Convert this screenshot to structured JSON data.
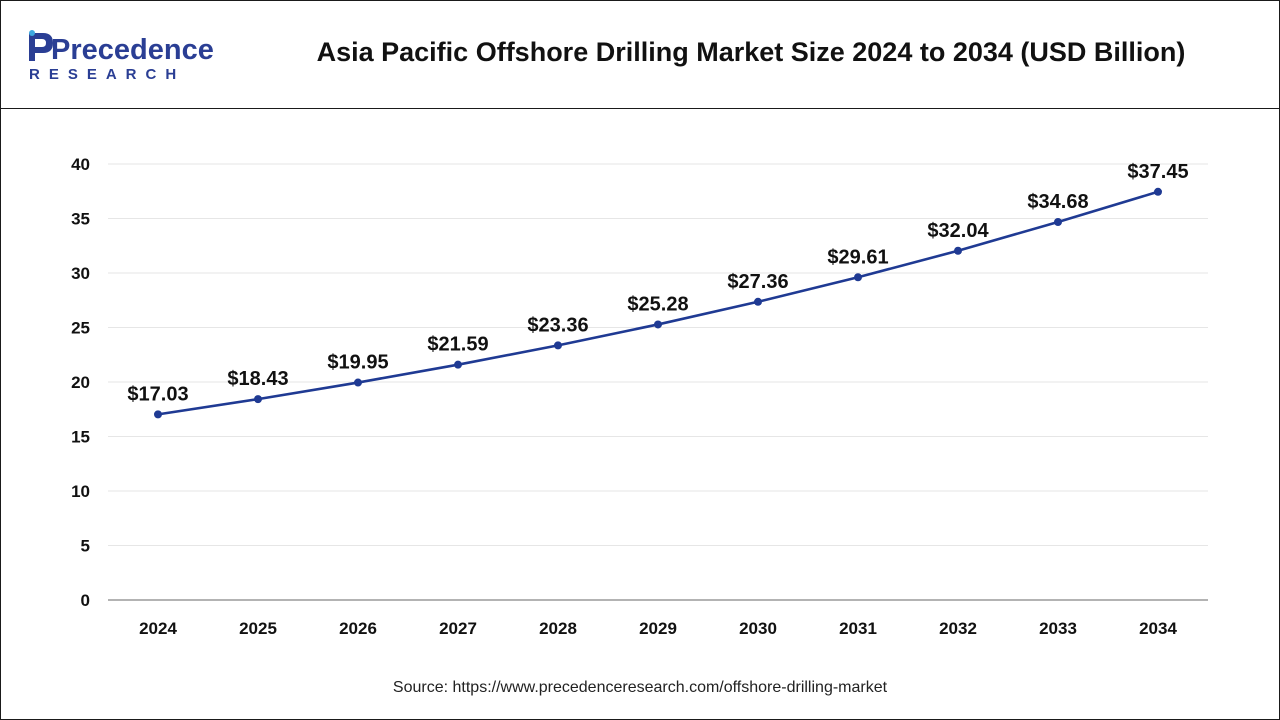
{
  "header": {
    "title": "Asia Pacific Offshore Drilling Market Size 2024 to 2034 (USD Billion)",
    "logo": {
      "wordmark": "Precedence",
      "tagline": "RESEARCH",
      "icon": "precedence-logo-icon",
      "brand_color": "#2a3e94"
    }
  },
  "chart_data": {
    "type": "line",
    "title": "Asia Pacific Offshore Drilling Market Size 2024 to 2034 (USD Billion)",
    "categories": [
      "2024",
      "2025",
      "2026",
      "2027",
      "2028",
      "2029",
      "2030",
      "2031",
      "2032",
      "2033",
      "2034"
    ],
    "values": [
      17.03,
      18.43,
      19.95,
      21.59,
      23.36,
      25.28,
      27.36,
      29.61,
      32.04,
      34.68,
      37.45
    ],
    "data_labels": [
      "$17.03",
      "$18.43",
      "$19.95",
      "$21.59",
      "$23.36",
      "$25.28",
      "$27.36",
      "$29.61",
      "$32.04",
      "$34.68",
      "$37.45"
    ],
    "yticks": [
      "0",
      "5",
      "10",
      "15",
      "20",
      "25",
      "30",
      "35",
      "40"
    ],
    "ylim": [
      0,
      40
    ],
    "xlabel": "",
    "ylabel": "",
    "grid": true,
    "line_color": "#1f3a93",
    "grid_color": "#e6e6e6"
  },
  "footer": {
    "source": "Source: https://www.precedenceresearch.com/offshore-drilling-market"
  }
}
